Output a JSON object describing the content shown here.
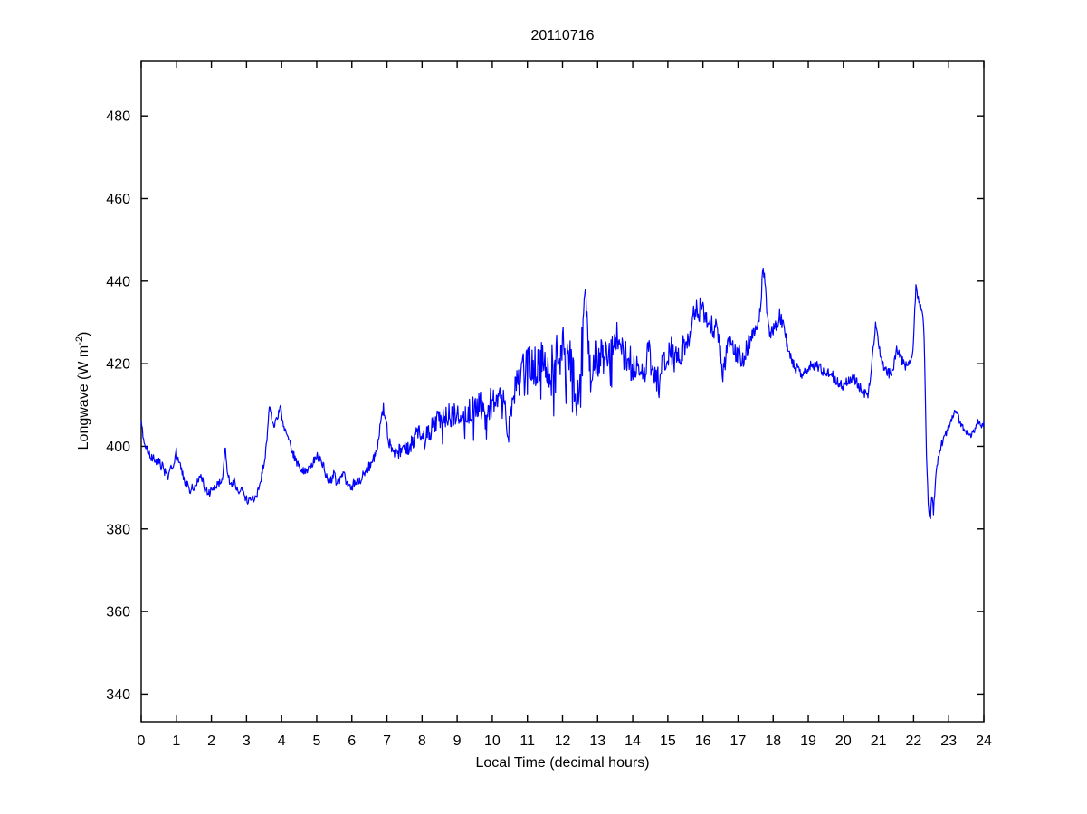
{
  "figure": {
    "title": "20110716",
    "xlabel": "Local Time (decimal hours)",
    "ylabel_prefix": "Longwave (W m",
    "ylabel_superscript": "-2",
    "ylabel_suffix": ")"
  },
  "chart_data": {
    "type": "line",
    "title": "20110716",
    "xlabel": "Local Time (decimal hours)",
    "ylabel": "Longwave (W m^-2)",
    "xlim": [
      0,
      24
    ],
    "ylim": [
      333.3,
      493.4
    ],
    "xticks": [
      0,
      1,
      2,
      3,
      4,
      5,
      6,
      7,
      8,
      9,
      10,
      11,
      12,
      13,
      14,
      15,
      16,
      17,
      18,
      19,
      20,
      21,
      22,
      23,
      24
    ],
    "yticks": [
      340,
      360,
      380,
      400,
      420,
      440,
      460,
      480
    ],
    "grid": false,
    "legend": null,
    "line_color": "#0000FF",
    "axis_color": "#000000",
    "background_color": "#ffffff",
    "series": [
      {
        "name": "longwave",
        "sample_minutes": 1,
        "keypoints": [
          [
            0.0,
            405
          ],
          [
            0.05,
            403
          ],
          [
            0.15,
            399.5
          ],
          [
            0.3,
            397.5
          ],
          [
            0.45,
            396.5
          ],
          [
            0.6,
            395
          ],
          [
            0.75,
            392.5
          ],
          [
            0.88,
            395
          ],
          [
            1.0,
            398.5
          ],
          [
            1.1,
            396
          ],
          [
            1.25,
            391.5
          ],
          [
            1.4,
            389.5
          ],
          [
            1.55,
            390.5
          ],
          [
            1.7,
            393
          ],
          [
            1.82,
            389.5
          ],
          [
            1.95,
            389
          ],
          [
            2.1,
            390.5
          ],
          [
            2.25,
            391.5
          ],
          [
            2.33,
            393
          ],
          [
            2.39,
            399.8
          ],
          [
            2.45,
            394
          ],
          [
            2.55,
            390.5
          ],
          [
            2.65,
            391.5
          ],
          [
            2.75,
            389
          ],
          [
            2.85,
            390
          ],
          [
            2.95,
            387.5
          ],
          [
            3.05,
            386.6
          ],
          [
            3.15,
            387
          ],
          [
            3.3,
            388.5
          ],
          [
            3.42,
            392.5
          ],
          [
            3.52,
            397
          ],
          [
            3.58,
            401
          ],
          [
            3.64,
            409.5
          ],
          [
            3.7,
            408
          ],
          [
            3.76,
            404.5
          ],
          [
            3.83,
            406
          ],
          [
            3.9,
            407.5
          ],
          [
            3.97,
            410.5
          ],
          [
            4.05,
            404.5
          ],
          [
            4.15,
            402.5
          ],
          [
            4.28,
            399.5
          ],
          [
            4.4,
            396.5
          ],
          [
            4.55,
            394.5
          ],
          [
            4.7,
            394
          ],
          [
            4.85,
            395.5
          ],
          [
            5.0,
            397.5
          ],
          [
            5.1,
            397
          ],
          [
            5.22,
            394.5
          ],
          [
            5.32,
            391.5
          ],
          [
            5.42,
            392
          ],
          [
            5.5,
            393.5
          ],
          [
            5.58,
            390.5
          ],
          [
            5.68,
            392.5
          ],
          [
            5.78,
            393.5
          ],
          [
            5.88,
            390.5
          ],
          [
            5.98,
            389.5
          ],
          [
            6.08,
            391.5
          ],
          [
            6.2,
            391
          ],
          [
            6.32,
            393
          ],
          [
            6.45,
            394.5
          ],
          [
            6.6,
            396.5
          ],
          [
            6.72,
            400
          ],
          [
            6.82,
            405
          ],
          [
            6.9,
            409
          ],
          [
            6.98,
            405
          ],
          [
            7.08,
            400.5
          ],
          [
            7.2,
            397.5
          ],
          [
            7.32,
            398.5
          ],
          [
            7.45,
            399.5
          ],
          [
            7.6,
            400
          ],
          [
            7.75,
            401.5
          ],
          [
            7.9,
            402.5
          ],
          [
            8.05,
            401.5
          ],
          [
            8.2,
            403.5
          ],
          [
            8.4,
            405.5
          ],
          [
            8.6,
            407
          ],
          [
            8.8,
            407
          ],
          [
            9.0,
            408
          ],
          [
            9.2,
            407.5
          ],
          [
            9.4,
            408
          ],
          [
            9.6,
            409.5
          ],
          [
            9.75,
            410
          ],
          [
            9.85,
            404
          ],
          [
            9.95,
            410
          ],
          [
            10.1,
            412.5
          ],
          [
            10.25,
            411.5
          ],
          [
            10.38,
            407
          ],
          [
            10.45,
            400
          ],
          [
            10.52,
            409
          ],
          [
            10.65,
            415
          ],
          [
            10.8,
            417.5
          ],
          [
            10.95,
            419
          ],
          [
            11.1,
            419.5
          ],
          [
            11.25,
            419
          ],
          [
            11.4,
            420.5
          ],
          [
            11.55,
            417.5
          ],
          [
            11.7,
            419
          ],
          [
            11.85,
            422
          ],
          [
            12.0,
            424
          ],
          [
            12.1,
            420
          ],
          [
            12.2,
            419
          ],
          [
            12.3,
            421
          ],
          [
            12.4,
            407
          ],
          [
            12.5,
            416
          ],
          [
            12.58,
            429
          ],
          [
            12.65,
            436.5
          ],
          [
            12.72,
            427
          ],
          [
            12.8,
            417
          ],
          [
            12.9,
            422
          ],
          [
            13.0,
            421
          ],
          [
            13.15,
            422.5
          ],
          [
            13.3,
            420.5
          ],
          [
            13.45,
            424
          ],
          [
            13.57,
            427.5
          ],
          [
            13.7,
            423
          ],
          [
            13.85,
            420.5
          ],
          [
            14.0,
            420
          ],
          [
            14.15,
            419
          ],
          [
            14.3,
            418.5
          ],
          [
            14.45,
            422
          ],
          [
            14.6,
            419
          ],
          [
            14.75,
            415.5
          ],
          [
            14.9,
            421
          ],
          [
            15.05,
            423.5
          ],
          [
            15.2,
            421.5
          ],
          [
            15.35,
            422.5
          ],
          [
            15.5,
            425.5
          ],
          [
            15.65,
            427
          ],
          [
            15.79,
            434.5
          ],
          [
            15.87,
            431
          ],
          [
            15.94,
            434.5
          ],
          [
            16.05,
            431
          ],
          [
            16.2,
            429.5
          ],
          [
            16.35,
            428.5
          ],
          [
            16.45,
            426.5
          ],
          [
            16.57,
            418
          ],
          [
            16.7,
            424.5
          ],
          [
            16.85,
            424
          ],
          [
            17.0,
            422.5
          ],
          [
            17.15,
            421
          ],
          [
            17.3,
            425
          ],
          [
            17.45,
            427
          ],
          [
            17.58,
            430
          ],
          [
            17.65,
            434
          ],
          [
            17.7,
            443
          ],
          [
            17.76,
            440.5
          ],
          [
            17.83,
            432
          ],
          [
            17.9,
            427
          ],
          [
            18.0,
            428
          ],
          [
            18.1,
            429.5
          ],
          [
            18.18,
            431.5
          ],
          [
            18.28,
            430
          ],
          [
            18.4,
            424.5
          ],
          [
            18.52,
            421
          ],
          [
            18.65,
            419
          ],
          [
            18.8,
            417.5
          ],
          [
            18.95,
            418.5
          ],
          [
            19.1,
            419.5
          ],
          [
            19.25,
            419.5
          ],
          [
            19.4,
            418.5
          ],
          [
            19.55,
            418
          ],
          [
            19.7,
            417
          ],
          [
            19.85,
            415.5
          ],
          [
            20.0,
            414.5
          ],
          [
            20.15,
            416
          ],
          [
            20.3,
            416.5
          ],
          [
            20.45,
            414.5
          ],
          [
            20.58,
            413
          ],
          [
            20.7,
            412
          ],
          [
            20.8,
            419
          ],
          [
            20.92,
            429.5
          ],
          [
            21.0,
            425
          ],
          [
            21.1,
            420
          ],
          [
            21.25,
            418
          ],
          [
            21.4,
            417.5
          ],
          [
            21.52,
            424
          ],
          [
            21.62,
            421.5
          ],
          [
            21.75,
            419.5
          ],
          [
            21.88,
            420
          ],
          [
            21.98,
            423
          ],
          [
            22.03,
            432
          ],
          [
            22.07,
            439.5
          ],
          [
            22.12,
            436
          ],
          [
            22.18,
            434
          ],
          [
            22.25,
            432.5
          ],
          [
            22.3,
            427
          ],
          [
            22.36,
            400
          ],
          [
            22.42,
            386
          ],
          [
            22.47,
            382.8
          ],
          [
            22.52,
            388
          ],
          [
            22.56,
            384
          ],
          [
            22.62,
            391
          ],
          [
            22.7,
            397
          ],
          [
            22.8,
            400.5
          ],
          [
            22.92,
            403
          ],
          [
            23.05,
            406
          ],
          [
            23.15,
            408
          ],
          [
            23.22,
            409
          ],
          [
            23.32,
            405.5
          ],
          [
            23.45,
            404
          ],
          [
            23.6,
            402.5
          ],
          [
            23.72,
            403.5
          ],
          [
            23.82,
            406
          ],
          [
            23.92,
            405
          ],
          [
            24.0,
            405.5
          ]
        ],
        "noise_envelope": [
          [
            0,
            1.2
          ],
          [
            3.3,
            1.0
          ],
          [
            3.6,
            0.8
          ],
          [
            4.3,
            1.0
          ],
          [
            6.5,
            1.2
          ],
          [
            7.2,
            1.6
          ],
          [
            7.6,
            2.2
          ],
          [
            8.2,
            3.0
          ],
          [
            9.0,
            3.5
          ],
          [
            9.8,
            4.0
          ],
          [
            10.4,
            4.5
          ],
          [
            11.2,
            5.0
          ],
          [
            11.9,
            6.0
          ],
          [
            12.45,
            6.5
          ],
          [
            12.65,
            3.0
          ],
          [
            13.0,
            5.0
          ],
          [
            13.6,
            4.5
          ],
          [
            14.3,
            4.0
          ],
          [
            15.2,
            3.8
          ],
          [
            15.85,
            2.5
          ],
          [
            16.5,
            3.0
          ],
          [
            17.2,
            2.5
          ],
          [
            17.7,
            1.2
          ],
          [
            18.2,
            1.8
          ],
          [
            18.8,
            1.5
          ],
          [
            19.5,
            1.3
          ],
          [
            20.5,
            1.2
          ],
          [
            20.92,
            1.0
          ],
          [
            21.3,
            1.3
          ],
          [
            21.8,
            1.2
          ],
          [
            22.1,
            0.8
          ],
          [
            22.32,
            0.8
          ],
          [
            22.5,
            1.8
          ],
          [
            22.75,
            1.0
          ],
          [
            23.1,
            0.7
          ],
          [
            24,
            0.7
          ]
        ]
      }
    ]
  }
}
